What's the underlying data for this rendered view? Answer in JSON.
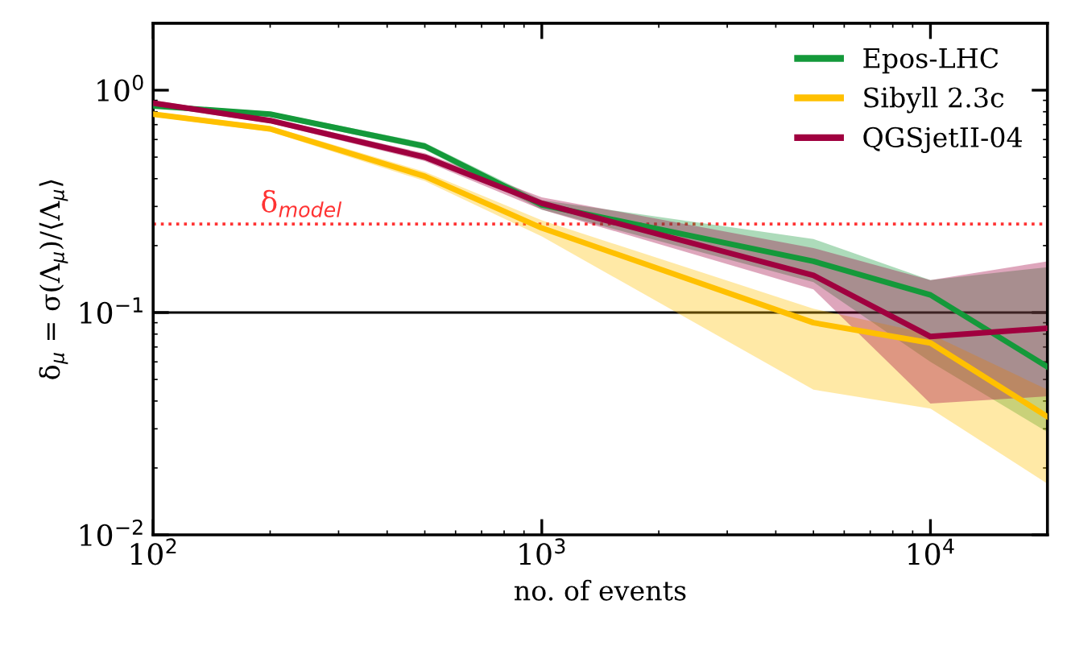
{
  "chart_data": {
    "type": "line",
    "xlabel": "no. of events",
    "ylabel": "δ$_{μ}$ = σ(Λ$_{μ}$)/⟨Λ$_{μ}$⟩",
    "log": "xy",
    "xlim": [
      100,
      20000
    ],
    "ylim": [
      0.01,
      2
    ],
    "xticks": [
      {
        "value": 100,
        "label": "10$^{2}$"
      },
      {
        "value": 1000,
        "label": "10$^{3}$"
      },
      {
        "value": 10000,
        "label": "10$^{4}$"
      }
    ],
    "yticks": [
      {
        "value": 0.01,
        "label": "10$^{−2}$"
      },
      {
        "value": 0.1,
        "label": "10$^{−1}$"
      },
      {
        "value": 1,
        "label": "10$^{0}$"
      }
    ],
    "x": [
      100,
      200,
      500,
      1000,
      5000,
      10000,
      20000
    ],
    "legend": "top right",
    "grid": false,
    "marker": "none",
    "line_style": "solid",
    "series": [
      {
        "name": "Epos-LHC",
        "color": "#14993a",
        "values": [
          0.85,
          0.78,
          0.56,
          0.305,
          0.17,
          0.12,
          0.057
        ],
        "lower": [
          0.83,
          0.76,
          0.54,
          0.29,
          0.137,
          0.06,
          0.029
        ],
        "upper": [
          0.87,
          0.8,
          0.58,
          0.32,
          0.214,
          0.14,
          0.16
        ]
      },
      {
        "name": "Sibyll 2.3c",
        "color": "#ffc000",
        "values": [
          0.78,
          0.67,
          0.41,
          0.24,
          0.09,
          0.073,
          0.034
        ],
        "lower": [
          0.76,
          0.65,
          0.39,
          0.22,
          0.045,
          0.037,
          0.017
        ],
        "upper": [
          0.8,
          0.69,
          0.43,
          0.26,
          0.104,
          0.08,
          0.045
        ]
      },
      {
        "name": "QGSjetII-04",
        "color": "#a0003f",
        "values": [
          0.875,
          0.73,
          0.5,
          0.31,
          0.147,
          0.078,
          0.085
        ],
        "lower": [
          0.85,
          0.71,
          0.48,
          0.29,
          0.127,
          0.039,
          0.042
        ],
        "upper": [
          0.9,
          0.75,
          0.52,
          0.33,
          0.195,
          0.14,
          0.17
        ]
      }
    ],
    "ref_lines": [
      {
        "axis": "y",
        "value": 0.1,
        "color": "#000000",
        "line_style": "solid"
      },
      {
        "axis": "y",
        "value": 0.25,
        "color": "#ff3333",
        "line_style": "dotted",
        "label": "δ$_{model}$"
      }
    ]
  }
}
